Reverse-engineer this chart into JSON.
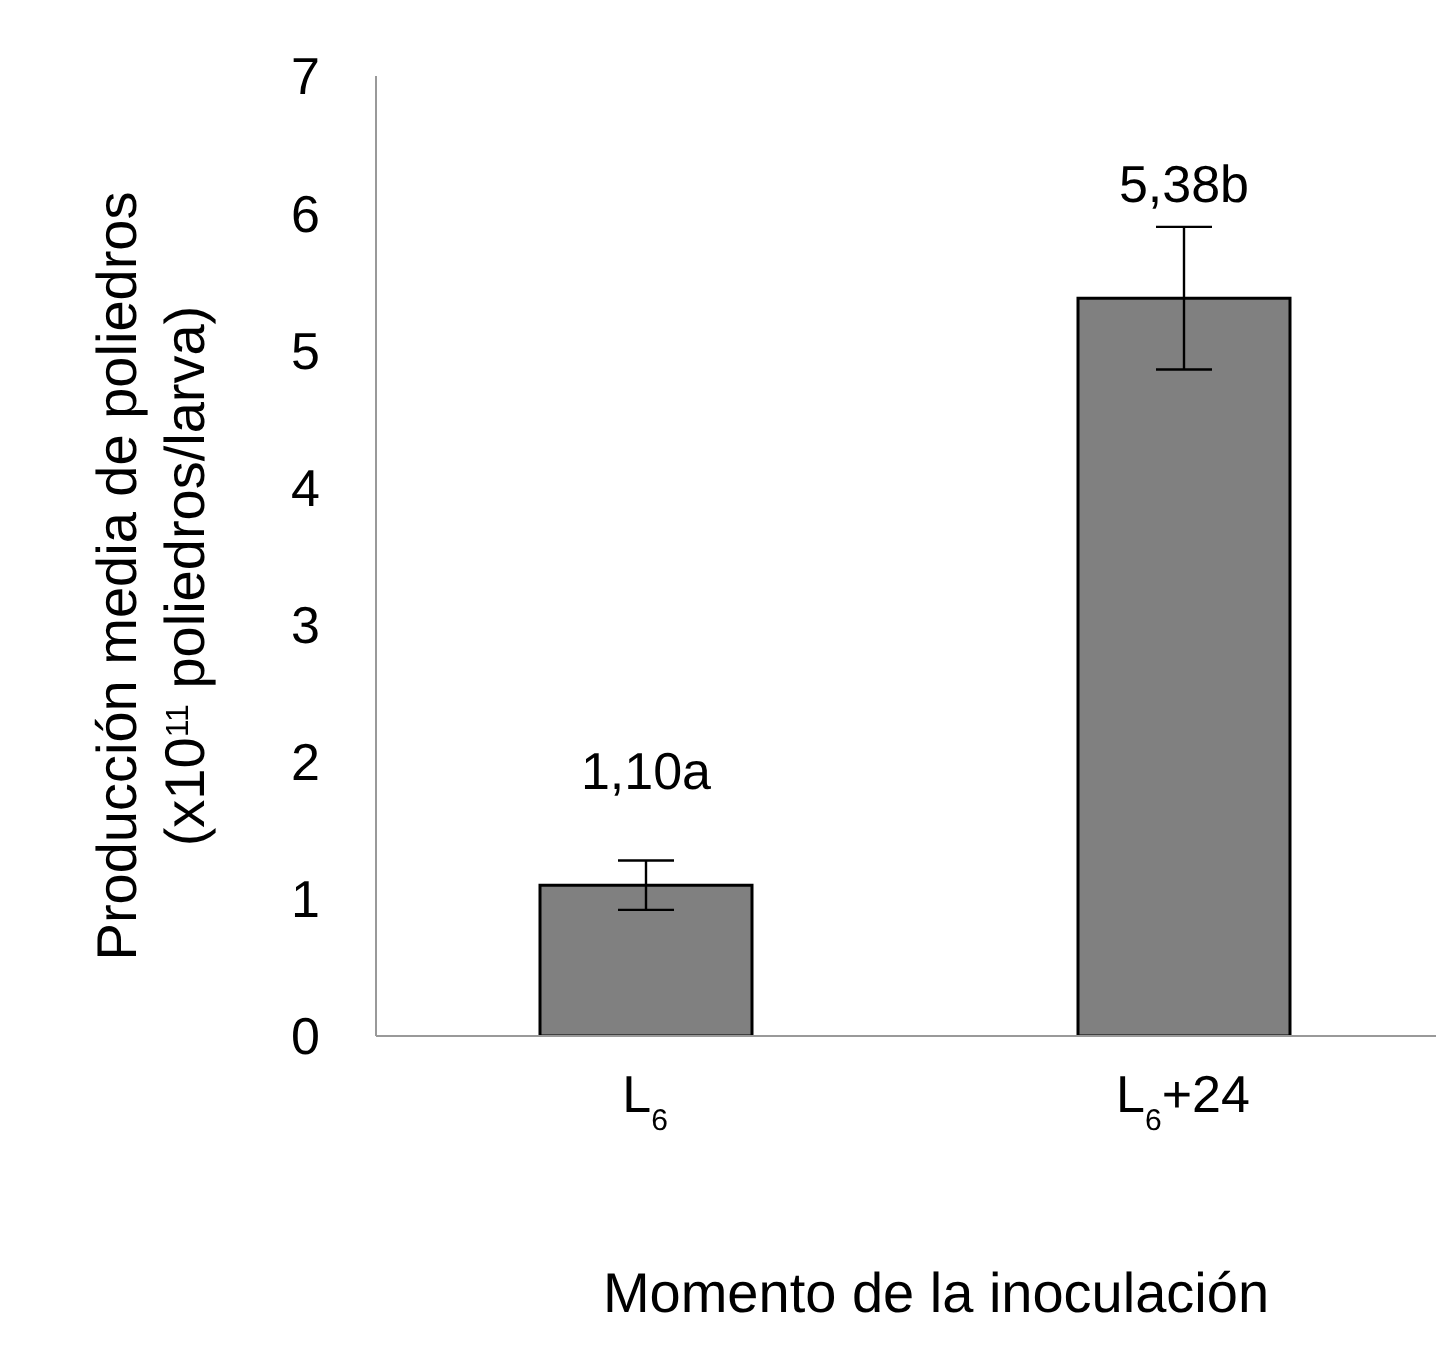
{
  "chart_data": {
    "type": "bar",
    "xlabel": "Momento de la inoculación",
    "ylabel": "Producción media de poliedros\n(x10$^{11}$ poliedros/larva)",
    "categories": [
      "L$_{6}$",
      "L$_{6}$+24"
    ],
    "values": [
      1.1,
      5.38
    ],
    "errors": [
      0.18,
      0.52
    ],
    "value_labels": [
      "1,10a",
      "5,38b"
    ],
    "color": "#808080",
    "ylim": [
      0,
      7
    ],
    "yticks": [
      0,
      1,
      2,
      3,
      4,
      5,
      6,
      7
    ],
    "grid": false
  }
}
